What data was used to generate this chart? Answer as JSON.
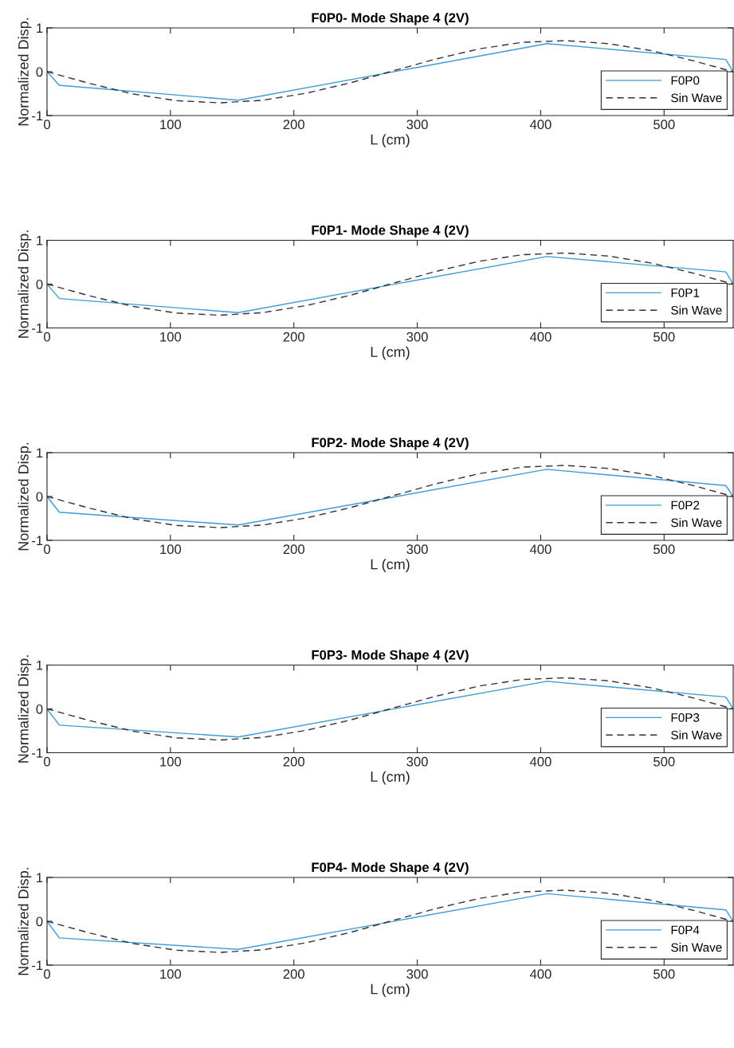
{
  "chart_data": [
    {
      "type": "line",
      "title": "F0P0- Mode Shape 4 (2V)",
      "xlabel": "L (cm)",
      "ylabel": "Normalized Disp.",
      "xlim": [
        0,
        556
      ],
      "ylim": [
        -1,
        1
      ],
      "xticks": [
        0,
        100,
        200,
        300,
        400,
        500
      ],
      "yticks": [
        -1,
        0,
        1
      ],
      "grid": false,
      "legend": "bottom right",
      "series": [
        {
          "name": "F0P0",
          "color": "#3d9bd9",
          "line_style": "solid",
          "x": [
            0,
            10,
            155,
            405,
            550,
            556
          ],
          "values": [
            0,
            -0.31,
            -0.65,
            0.64,
            0.28,
            0
          ]
        },
        {
          "name": "Sin Wave",
          "color": "#333333",
          "line_style": "dashed",
          "x": [
            0,
            35,
            70,
            105,
            140,
            175,
            210,
            245,
            278,
            315,
            350,
            385,
            420,
            455,
            490,
            525,
            556
          ],
          "values": [
            0,
            -0.27,
            -0.51,
            -0.66,
            -0.71,
            -0.65,
            -0.49,
            -0.26,
            0,
            0.29,
            0.52,
            0.67,
            0.71,
            0.64,
            0.48,
            0.24,
            0
          ]
        }
      ]
    },
    {
      "type": "line",
      "title": "F0P1- Mode Shape 4 (2V)",
      "xlabel": "L (cm)",
      "ylabel": "Normalized Disp.",
      "xlim": [
        0,
        556
      ],
      "ylim": [
        -1,
        1
      ],
      "xticks": [
        0,
        100,
        200,
        300,
        400,
        500
      ],
      "yticks": [
        -1,
        0,
        1
      ],
      "grid": false,
      "legend": "bottom right",
      "series": [
        {
          "name": "F0P1",
          "color": "#3d9bd9",
          "line_style": "solid",
          "x": [
            0,
            10,
            155,
            405,
            550,
            556
          ],
          "values": [
            0,
            -0.33,
            -0.65,
            0.63,
            0.28,
            0
          ]
        },
        {
          "name": "Sin Wave",
          "color": "#333333",
          "line_style": "dashed",
          "x": [
            0,
            35,
            70,
            105,
            140,
            175,
            210,
            245,
            278,
            315,
            350,
            385,
            420,
            455,
            490,
            525,
            556
          ],
          "values": [
            0,
            -0.27,
            -0.51,
            -0.66,
            -0.71,
            -0.65,
            -0.49,
            -0.26,
            0,
            0.29,
            0.52,
            0.67,
            0.71,
            0.64,
            0.48,
            0.24,
            0
          ]
        }
      ]
    },
    {
      "type": "line",
      "title": "F0P2- Mode Shape 4 (2V)",
      "xlabel": "L (cm)",
      "ylabel": "Normalized Disp.",
      "xlim": [
        0,
        556
      ],
      "ylim": [
        -1,
        1
      ],
      "xticks": [
        0,
        100,
        200,
        300,
        400,
        500
      ],
      "yticks": [
        -1,
        0,
        1
      ],
      "grid": false,
      "legend": "bottom right",
      "series": [
        {
          "name": "F0P2",
          "color": "#3d9bd9",
          "line_style": "solid",
          "x": [
            0,
            10,
            155,
            405,
            550,
            556
          ],
          "values": [
            0,
            -0.36,
            -0.65,
            0.62,
            0.25,
            0
          ]
        },
        {
          "name": "Sin Wave",
          "color": "#333333",
          "line_style": "dashed",
          "x": [
            0,
            35,
            70,
            105,
            140,
            175,
            210,
            245,
            278,
            315,
            350,
            385,
            420,
            455,
            490,
            525,
            556
          ],
          "values": [
            0,
            -0.27,
            -0.51,
            -0.66,
            -0.71,
            -0.65,
            -0.49,
            -0.26,
            0,
            0.29,
            0.52,
            0.67,
            0.71,
            0.64,
            0.48,
            0.24,
            0
          ]
        }
      ]
    },
    {
      "type": "line",
      "title": "F0P3- Mode Shape 4 (2V)",
      "xlabel": "L (cm)",
      "ylabel": "Normalized Disp.",
      "xlim": [
        0,
        556
      ],
      "ylim": [
        -1,
        1
      ],
      "xticks": [
        0,
        100,
        200,
        300,
        400,
        500
      ],
      "yticks": [
        -1,
        0,
        1
      ],
      "grid": false,
      "legend": "bottom right",
      "series": [
        {
          "name": "F0P3",
          "color": "#3d9bd9",
          "line_style": "solid",
          "x": [
            0,
            10,
            155,
            405,
            550,
            556
          ],
          "values": [
            0,
            -0.37,
            -0.64,
            0.63,
            0.27,
            0
          ]
        },
        {
          "name": "Sin Wave",
          "color": "#333333",
          "line_style": "dashed",
          "x": [
            0,
            35,
            70,
            105,
            140,
            175,
            210,
            245,
            278,
            315,
            350,
            385,
            420,
            455,
            490,
            525,
            556
          ],
          "values": [
            0,
            -0.27,
            -0.51,
            -0.66,
            -0.71,
            -0.65,
            -0.49,
            -0.26,
            0,
            0.29,
            0.52,
            0.67,
            0.71,
            0.64,
            0.48,
            0.24,
            0
          ]
        }
      ]
    },
    {
      "type": "line",
      "title": "F0P4- Mode Shape 4 (2V)",
      "xlabel": "L (cm)",
      "ylabel": "Normalized Disp.",
      "xlim": [
        0,
        556
      ],
      "ylim": [
        -1,
        1
      ],
      "xticks": [
        0,
        100,
        200,
        300,
        400,
        500
      ],
      "yticks": [
        -1,
        0,
        1
      ],
      "grid": false,
      "legend": "bottom right",
      "series": [
        {
          "name": "F0P4",
          "color": "#3d9bd9",
          "line_style": "solid",
          "x": [
            0,
            10,
            155,
            405,
            550,
            556
          ],
          "values": [
            0,
            -0.38,
            -0.64,
            0.63,
            0.26,
            0
          ]
        },
        {
          "name": "Sin Wave",
          "color": "#333333",
          "line_style": "dashed",
          "x": [
            0,
            35,
            70,
            105,
            140,
            175,
            210,
            245,
            278,
            315,
            350,
            385,
            420,
            455,
            490,
            525,
            556
          ],
          "values": [
            0,
            -0.27,
            -0.51,
            -0.66,
            -0.71,
            -0.65,
            -0.49,
            -0.26,
            0,
            0.29,
            0.52,
            0.67,
            0.71,
            0.64,
            0.48,
            0.24,
            0
          ]
        }
      ]
    }
  ]
}
